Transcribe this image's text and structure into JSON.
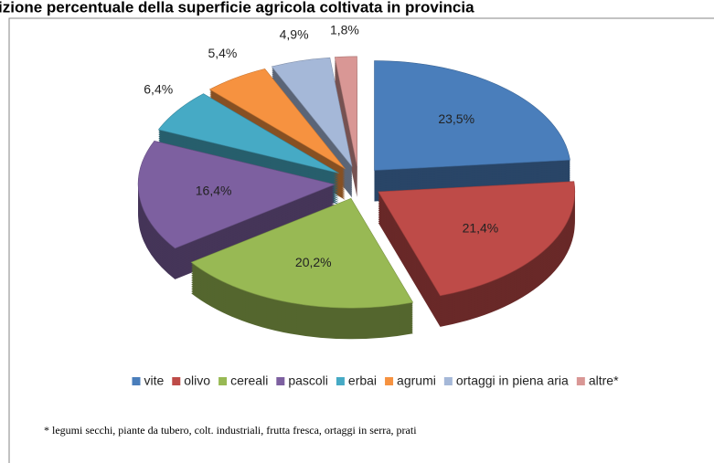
{
  "chart_data": {
    "type": "pie",
    "title": "izione percentuale della superficie agricola coltivata in provincia",
    "categories": [
      "vite",
      "olivo",
      "cereali",
      "pascoli",
      "erbai",
      "agrumi",
      "ortaggi in piena aria",
      "altre*"
    ],
    "values": [
      23.5,
      21.4,
      20.2,
      16.4,
      6.4,
      5.4,
      4.9,
      1.8
    ],
    "value_labels": [
      "23,5%",
      "21,4%",
      "20,2%",
      "16,4%",
      "6,4%",
      "5,4%",
      "4,9%",
      "1,8%"
    ],
    "colors": [
      "#4a7ebb",
      "#be4b48",
      "#98b954",
      "#7d60a0",
      "#46aac5",
      "#f69240",
      "#a5b8d8",
      "#d99795"
    ],
    "legend": "bottom",
    "footnote": "* legumi secchi, piante da tubero, colt. industriali, frutta fresca, ortaggi in serra, prati"
  }
}
